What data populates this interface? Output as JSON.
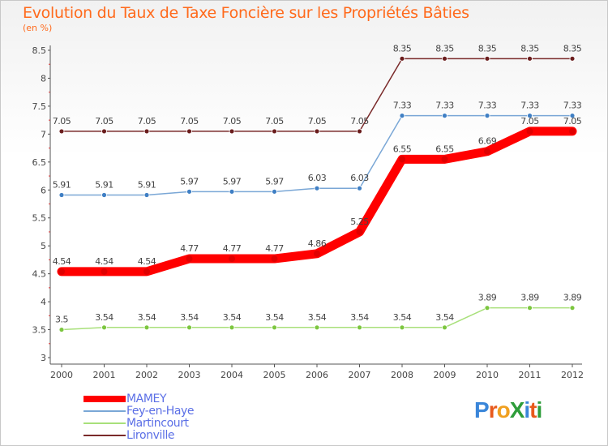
{
  "chart_data": {
    "type": "line",
    "title": "Evolution du Taux de Taxe Foncière sur les Propriétés Bâties",
    "subtitle": "(en %)",
    "xlabel": "",
    "ylabel": "",
    "ylim": [
      3,
      8.5
    ],
    "yticks": [
      "3",
      "3.5",
      "4",
      "4.5",
      "5",
      "5.5",
      "6",
      "6.5",
      "7",
      "7.5",
      "8",
      "8.5"
    ],
    "categories": [
      "2000",
      "2001",
      "2002",
      "2003",
      "2004",
      "2005",
      "2006",
      "2007",
      "2008",
      "2009",
      "2010",
      "2011",
      "2012"
    ],
    "series": [
      {
        "name": "Lironville",
        "color": "#7a2a2a",
        "marker": "#6a1d1d",
        "values": [
          7.05,
          7.05,
          7.05,
          7.05,
          7.05,
          7.05,
          7.05,
          7.05,
          8.35,
          8.35,
          8.35,
          8.35,
          8.35
        ],
        "labels": [
          "7.05",
          "7.05",
          "7.05",
          "7.05",
          "7.05",
          "7.05",
          "7.05",
          "7.05",
          "8.35",
          "8.35",
          "8.35",
          "8.35",
          "8.35"
        ]
      },
      {
        "name": "Fey-en-Haye",
        "color": "#7aa7d6",
        "marker": "#3f7fc4",
        "values": [
          5.91,
          5.91,
          5.91,
          5.97,
          5.97,
          5.97,
          6.03,
          6.03,
          7.33,
          7.33,
          7.33,
          7.33,
          7.33
        ],
        "labels": [
          "5.91",
          "5.91",
          "5.91",
          "5.97",
          "5.97",
          "5.97",
          "6.03",
          "6.03",
          "7.33",
          "7.33",
          "7.33",
          "7.33",
          "7.33"
        ]
      },
      {
        "name": "Martincourt",
        "color": "#a8e07a",
        "marker": "#7cc63f",
        "values": [
          3.5,
          3.54,
          3.54,
          3.54,
          3.54,
          3.54,
          3.54,
          3.54,
          3.54,
          3.54,
          3.89,
          3.89,
          3.89
        ],
        "labels": [
          "3.5",
          "3.54",
          "3.54",
          "3.54",
          "3.54",
          "3.54",
          "3.54",
          "3.54",
          "3.54",
          "3.54",
          "3.89",
          "3.89",
          "3.89"
        ]
      },
      {
        "name": "MAMEY",
        "color": "#ff0000",
        "marker": "#e00000",
        "values": [
          4.54,
          4.54,
          4.54,
          4.77,
          4.77,
          4.77,
          4.86,
          5.25,
          6.55,
          6.55,
          6.69,
          7.05,
          7.05
        ],
        "labels": [
          "4.54",
          "4.54",
          "4.54",
          "4.77",
          "4.77",
          "4.77",
          "4.86",
          "5.25",
          "6.55",
          "6.55",
          "6.69",
          "7.05",
          "7.05"
        ]
      }
    ],
    "legend": [
      "MAMEY",
      "Fey-en-Haye",
      "Martincourt",
      "Lironville"
    ],
    "legend_position": "bottom-left",
    "grid": false
  },
  "brand": {
    "text": "ProXiti",
    "colors": [
      "#3a86d9",
      "#e85a1c",
      "#f0a020",
      "#2e9d3a",
      "#3a86d9",
      "#e85a1c",
      "#2e9d3a"
    ]
  }
}
